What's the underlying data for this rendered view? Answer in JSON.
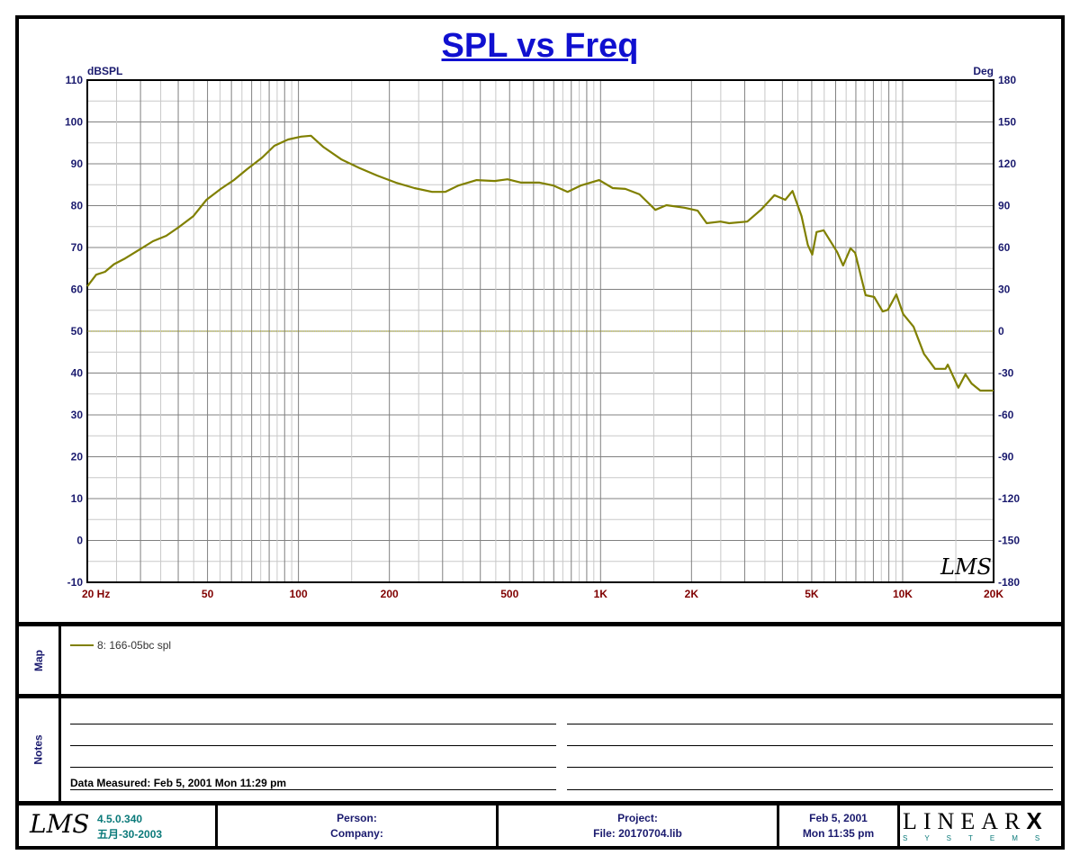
{
  "chart_data": {
    "type": "line",
    "title": "SPL vs Freq",
    "ylabel": "dBSPL",
    "y2label": "Deg",
    "xscale": "log",
    "xlim": [
      20,
      20000
    ],
    "ylim": [
      -10,
      110
    ],
    "y2lim": [
      -180,
      180
    ],
    "grid": true,
    "x_tick_labels": [
      {
        "value": 20,
        "label": "20  Hz"
      },
      {
        "value": 50,
        "label": "50"
      },
      {
        "value": 100,
        "label": "100"
      },
      {
        "value": 200,
        "label": "200"
      },
      {
        "value": 500,
        "label": "500"
      },
      {
        "value": 1000,
        "label": "1K"
      },
      {
        "value": 2000,
        "label": "2K"
      },
      {
        "value": 5000,
        "label": "5K"
      },
      {
        "value": 10000,
        "label": "10K"
      },
      {
        "value": 20000,
        "label": "20K"
      }
    ],
    "y_ticks": [
      110,
      100,
      90,
      80,
      70,
      60,
      50,
      40,
      30,
      20,
      10,
      0,
      -10
    ],
    "y2_ticks": [
      180,
      150,
      120,
      90,
      60,
      30,
      0,
      -30,
      -60,
      -90,
      -120,
      -150,
      -180
    ],
    "reference_line_y2": 0,
    "series": [
      {
        "name": "8: 166-05bc spl",
        "color": "#808000",
        "x": [
          20,
          21.4,
          22.9,
          24.5,
          26.7,
          29.9,
          33,
          36.5,
          40.4,
          44.9,
          49.6,
          55.3,
          61.1,
          67.6,
          75.9,
          83.2,
          92.4,
          102,
          110,
          121,
          139,
          159,
          182,
          210,
          242,
          277,
          306,
          338,
          389,
          446,
          492,
          546,
          628,
          699,
          778,
          859,
          989,
          1097,
          1208,
          1345,
          1519,
          1652,
          1895,
          2097,
          2245,
          2494,
          2666,
          3060,
          3393,
          3763,
          4087,
          4319,
          4626,
          4853,
          5021,
          5187,
          5477,
          6069,
          6354,
          6720,
          6964,
          7538,
          8047,
          8591,
          8930,
          9530,
          10036,
          10861,
          11760,
          12800,
          13860,
          14110,
          15300,
          16140,
          16910,
          18070,
          20000
        ],
        "y": [
          60.7,
          63.5,
          64.2,
          66,
          67.4,
          69.6,
          71.5,
          72.8,
          75,
          77.5,
          81.4,
          84,
          86.1,
          88.7,
          91.5,
          94.3,
          95.8,
          96.5,
          96.7,
          94,
          91,
          89,
          87.2,
          85.5,
          84.2,
          83.3,
          83.3,
          84.8,
          86.1,
          85.9,
          86.3,
          85.5,
          85.5,
          84.8,
          83.3,
          84.8,
          86.1,
          84.2,
          84,
          82.7,
          79,
          80.1,
          79.5,
          78.8,
          75.8,
          76.2,
          75.8,
          76.2,
          79,
          82.5,
          81.4,
          83.5,
          77.5,
          70.6,
          68.3,
          73.7,
          74.1,
          68.9,
          65.7,
          69.8,
          68.7,
          58.6,
          58.2,
          54.7,
          55.1,
          58.8,
          54.1,
          51.1,
          44.6,
          41,
          41,
          42,
          36.5,
          39.7,
          37.5,
          35.8,
          35.8
        ]
      }
    ]
  },
  "watermark": "LMS",
  "map": {
    "label": "Map"
  },
  "notes": {
    "label": "Notes",
    "measured": "Data Measured: Feb  5, 2001  Mon 11:29 pm"
  },
  "footer": {
    "logo": "LMS",
    "version": "4.5.0.340",
    "version_date": "五月-30-2003",
    "person": "Person:",
    "company": "Company:",
    "project": "Project:",
    "file": "File: 20170704.lib",
    "date": "Feb  5, 2001",
    "time": "Mon 11:35 pm",
    "brand": "LINEAR",
    "brand_x": "X",
    "brand_sub": "SYSTEMS"
  }
}
